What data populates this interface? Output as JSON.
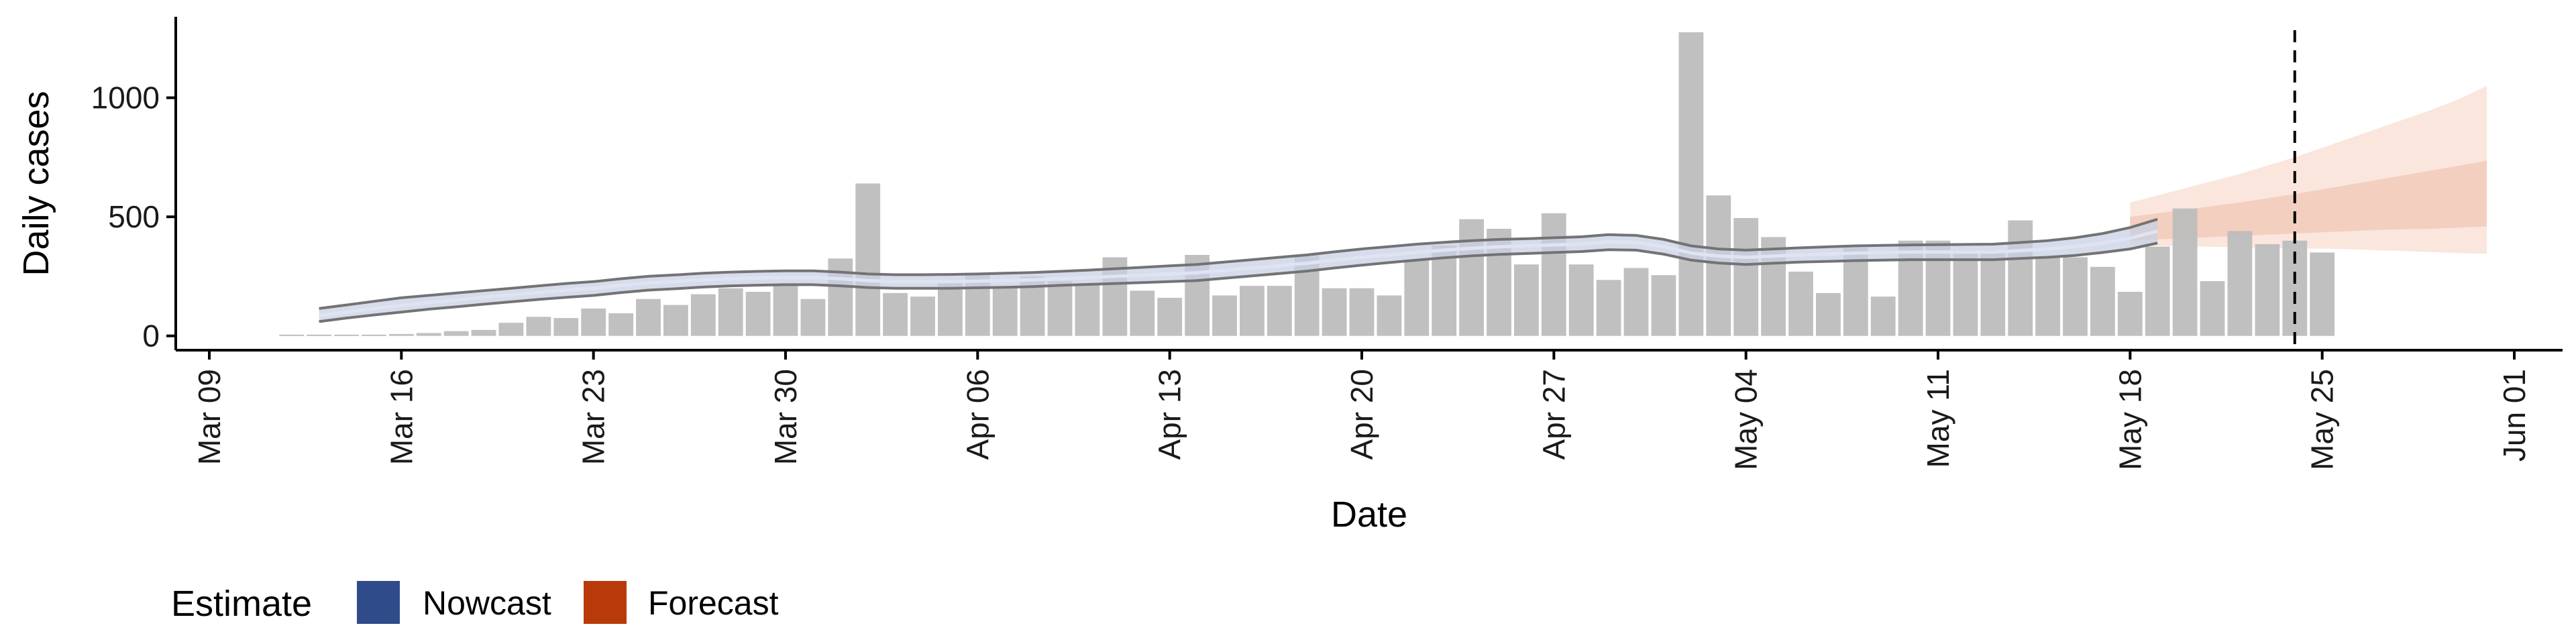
{
  "chart_data": {
    "type": "bar",
    "xlabel": "Date",
    "ylabel": "Daily cases",
    "ylim": [
      -60,
      1340
    ],
    "yticks": [
      0,
      500,
      1000
    ],
    "x_tick_labels": [
      "Mar 09",
      "Mar 16",
      "Mar 23",
      "Mar 30",
      "Apr 06",
      "Apr 13",
      "Apr 20",
      "Apr 27",
      "May 04",
      "May 11",
      "May 18",
      "May 25",
      "Jun 01"
    ],
    "start_date": "2020-03-12",
    "observed_cases": [
      5,
      5,
      5,
      5,
      8,
      12,
      20,
      25,
      55,
      80,
      75,
      115,
      95,
      155,
      130,
      175,
      200,
      185,
      210,
      155,
      325,
      640,
      180,
      165,
      235,
      265,
      205,
      250,
      230,
      220,
      330,
      190,
      160,
      340,
      170,
      210,
      210,
      340,
      200,
      200,
      170,
      320,
      380,
      490,
      450,
      300,
      515,
      300,
      235,
      285,
      255,
      1275,
      590,
      495,
      415,
      270,
      180,
      370,
      165,
      400,
      400,
      360,
      360,
      485,
      330,
      330,
      290,
      185,
      375,
      535,
      230,
      440,
      385,
      400,
      350
    ],
    "nowcast": {
      "start_date": "2020-03-13",
      "median": [
        85,
        100,
        115,
        128,
        140,
        150,
        162,
        172,
        182,
        192,
        200,
        212,
        222,
        228,
        235,
        240,
        243,
        245,
        245,
        240,
        232,
        228,
        228,
        228,
        230,
        232,
        235,
        240,
        245,
        250,
        255,
        260,
        265,
        275,
        285,
        295,
        305,
        318,
        330,
        340,
        350,
        360,
        368,
        374,
        378,
        382,
        386,
        395,
        392,
        375,
        348,
        335,
        330,
        335,
        340,
        344,
        348,
        350,
        352,
        352,
        352,
        352,
        358,
        365,
        375,
        390,
        410,
        440
      ],
      "upper": [
        115,
        130,
        145,
        160,
        170,
        180,
        190,
        200,
        210,
        220,
        228,
        240,
        250,
        256,
        263,
        268,
        271,
        273,
        273,
        268,
        260,
        257,
        257,
        258,
        260,
        263,
        266,
        271,
        276,
        282,
        288,
        294,
        300,
        310,
        320,
        330,
        340,
        353,
        365,
        375,
        385,
        393,
        400,
        405,
        408,
        412,
        416,
        425,
        422,
        405,
        378,
        365,
        360,
        365,
        370,
        374,
        378,
        380,
        382,
        383,
        384,
        385,
        392,
        400,
        412,
        430,
        455,
        490
      ],
      "lower": [
        60,
        75,
        88,
        100,
        112,
        122,
        133,
        143,
        153,
        162,
        170,
        182,
        192,
        198,
        205,
        210,
        213,
        215,
        215,
        210,
        203,
        200,
        200,
        200,
        202,
        204,
        207,
        212,
        216,
        220,
        224,
        228,
        232,
        242,
        252,
        262,
        272,
        285,
        297,
        308,
        318,
        328,
        336,
        342,
        346,
        350,
        354,
        362,
        360,
        343,
        318,
        306,
        300,
        305,
        310,
        313,
        316,
        318,
        320,
        320,
        320,
        320,
        325,
        330,
        338,
        350,
        365,
        390
      ]
    },
    "forecast": {
      "start_date": "2020-05-18",
      "median": [
        480,
        488,
        496,
        505,
        515,
        525,
        540,
        555,
        570,
        585,
        600,
        618,
        635,
        660
      ],
      "inner_upper": [
        500,
        515,
        530,
        545,
        560,
        578,
        596,
        615,
        635,
        655,
        675,
        695,
        715,
        735
      ],
      "inner_lower": [
        400,
        405,
        410,
        415,
        420,
        425,
        430,
        435,
        440,
        445,
        448,
        450,
        455,
        460
      ],
      "outer_upper": [
        560,
        590,
        620,
        650,
        680,
        715,
        750,
        790,
        830,
        870,
        910,
        950,
        995,
        1050
      ],
      "outer_lower": [
        380,
        378,
        376,
        374,
        372,
        370,
        368,
        366,
        364,
        360,
        356,
        352,
        348,
        345
      ]
    },
    "vline_date": "2020-05-24",
    "legend": {
      "title": "Estimate",
      "position": "bottom-left",
      "items": [
        {
          "label": "Nowcast",
          "color": "#2f4b8a"
        },
        {
          "label": "Forecast",
          "color": "#b83a0b"
        }
      ]
    },
    "colors": {
      "bars": "#bdbdbd",
      "nowcast_band": "#c8d0e4",
      "nowcast_line": "#737373",
      "forecast_outer": "#fae3d9",
      "forecast_inner": "#f2ccbd"
    },
    "grid": false
  }
}
